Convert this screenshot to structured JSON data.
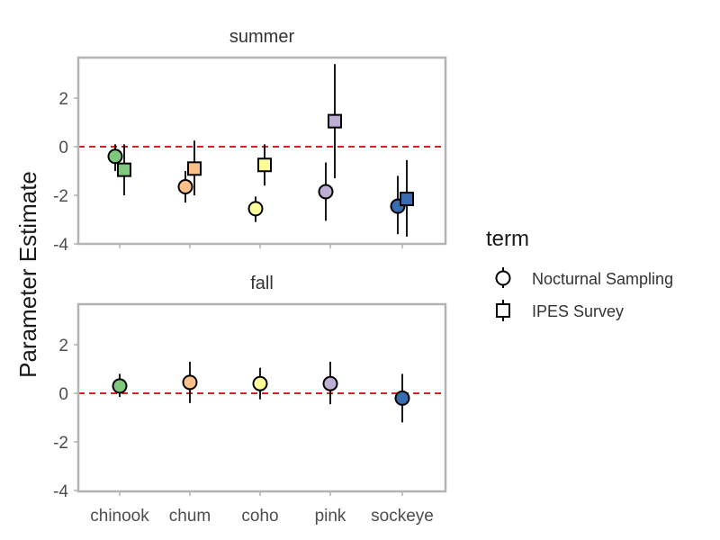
{
  "chart_data": {
    "type": "scatter",
    "title": "",
    "ylabel": "Parameter Estimate",
    "xlabel": "",
    "categories": [
      "chinook",
      "chum",
      "coho",
      "pink",
      "sockeye"
    ],
    "ylim": [
      -4,
      3.5
    ],
    "yticks": [
      -4,
      -2,
      0,
      2
    ],
    "reference_line": {
      "y": 0,
      "style": "dashed",
      "color": "#e41a1c"
    },
    "colors": {
      "chinook": "#7fc97f",
      "chum": "#fdc086",
      "coho": "#ffff99",
      "pink": "#beaed4",
      "sockeye": "#386cb0"
    },
    "legend": {
      "title": "term",
      "placement": "right",
      "entries": [
        {
          "name": "Nocturnal Sampling",
          "shape": "circle"
        },
        {
          "name": "IPES Survey",
          "shape": "square"
        }
      ]
    },
    "panels": [
      {
        "title": "summer",
        "series": [
          {
            "name": "Nocturnal Sampling",
            "shape": "circle",
            "points": [
              {
                "x": "chinook",
                "y": -0.4,
                "low": -1.0,
                "high": 0.1
              },
              {
                "x": "chum",
                "y": -1.65,
                "low": -2.3,
                "high": -1.0
              },
              {
                "x": "coho",
                "y": -2.55,
                "low": -3.1,
                "high": -2.05
              },
              {
                "x": "pink",
                "y": -1.85,
                "low": -3.05,
                "high": -0.65
              },
              {
                "x": "sockeye",
                "y": -2.45,
                "low": -3.6,
                "high": -1.2
              }
            ]
          },
          {
            "name": "IPES Survey",
            "shape": "square",
            "points": [
              {
                "x": "chinook",
                "y": -0.95,
                "low": -2.0,
                "high": 0.1
              },
              {
                "x": "chum",
                "y": -0.9,
                "low": -2.0,
                "high": 0.25
              },
              {
                "x": "coho",
                "y": -0.75,
                "low": -1.6,
                "high": 0.1
              },
              {
                "x": "pink",
                "y": 1.05,
                "low": -1.3,
                "high": 3.4
              },
              {
                "x": "sockeye",
                "y": -2.15,
                "low": -3.7,
                "high": -0.55
              }
            ]
          }
        ]
      },
      {
        "title": "fall",
        "series": [
          {
            "name": "Nocturnal Sampling",
            "shape": "circle",
            "points": [
              {
                "x": "chinook",
                "y": 0.3,
                "low": -0.15,
                "high": 0.8
              },
              {
                "x": "chum",
                "y": 0.45,
                "low": -0.4,
                "high": 1.3
              },
              {
                "x": "coho",
                "y": 0.4,
                "low": -0.25,
                "high": 1.05
              },
              {
                "x": "pink",
                "y": 0.4,
                "low": -0.45,
                "high": 1.3
              },
              {
                "x": "sockeye",
                "y": -0.2,
                "low": -1.2,
                "high": 0.8
              }
            ]
          }
        ]
      }
    ]
  }
}
